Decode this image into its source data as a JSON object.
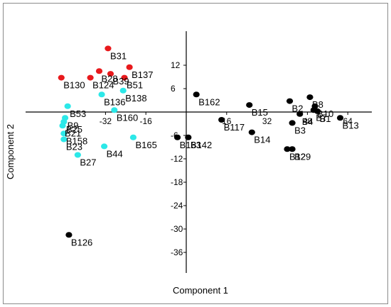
{
  "chart_data": {
    "type": "scatter",
    "xlabel": "Component 1",
    "ylabel": "Component 2",
    "xlim": [
      -45,
      72
    ],
    "ylim": [
      -40,
      20
    ],
    "xticks": [
      -32,
      -16,
      16,
      32,
      48,
      64
    ],
    "xtick_labels": [
      "-32",
      "-16",
      "16",
      "32",
      "48",
      "64"
    ],
    "yticks": [
      12,
      6,
      -6,
      -12,
      -18,
      -24,
      -30,
      -36
    ],
    "ytick_labels": [
      "12",
      "6",
      "-6",
      "-12",
      "-18",
      "-24",
      "-30",
      "-36"
    ],
    "grid": false,
    "legend": false,
    "colors": {
      "red": "#e8191c",
      "cyan": "#2ce8e8",
      "black": "#000000"
    },
    "points": [
      {
        "label": "B31",
        "x": -31,
        "y": 16.3,
        "color": "red"
      },
      {
        "label": "B137",
        "x": -22.5,
        "y": 11.5,
        "color": "red"
      },
      {
        "label": "B28",
        "x": -34.5,
        "y": 10.5,
        "color": "red"
      },
      {
        "label": "B39",
        "x": -30,
        "y": 9.8,
        "color": "red"
      },
      {
        "label": "B130",
        "x": -49.5,
        "y": 8.8,
        "color": "red"
      },
      {
        "label": "B124",
        "x": -38,
        "y": 8.8,
        "color": "red"
      },
      {
        "label": "B51",
        "x": -24.5,
        "y": 8.8,
        "color": "red"
      },
      {
        "label": "B138",
        "x": -25,
        "y": 5.5,
        "color": "cyan"
      },
      {
        "label": "B136",
        "x": -33.5,
        "y": 4.5,
        "color": "cyan"
      },
      {
        "label": "B53",
        "x": -47,
        "y": 1.5,
        "color": "cyan"
      },
      {
        "label": "B160",
        "x": -28.5,
        "y": 0.5,
        "color": "cyan"
      },
      {
        "label": "B9",
        "x": -48,
        "y": -1.5,
        "color": "cyan"
      },
      {
        "label": "B25",
        "x": -48.5,
        "y": -2.5,
        "color": "cyan"
      },
      {
        "label": "B21",
        "x": -49,
        "y": -3.5,
        "color": "cyan"
      },
      {
        "label": "B158",
        "x": -48.5,
        "y": -5.5,
        "color": "cyan"
      },
      {
        "label": "B23",
        "x": -48.5,
        "y": -7.0,
        "color": "cyan"
      },
      {
        "label": "B165",
        "x": -21,
        "y": -6.5,
        "color": "cyan"
      },
      {
        "label": "B44",
        "x": -32.5,
        "y": -8.8,
        "color": "cyan"
      },
      {
        "label": "B27",
        "x": -43,
        "y": -11.0,
        "color": "cyan"
      },
      {
        "label": "B162",
        "x": 4,
        "y": 4.5,
        "color": "black"
      },
      {
        "label": "B15",
        "x": 25,
        "y": 1.8,
        "color": "black"
      },
      {
        "label": "B2",
        "x": 41,
        "y": 2.8,
        "color": "black"
      },
      {
        "label": "B8",
        "x": 49,
        "y": 3.8,
        "color": "black"
      },
      {
        "label": "B10",
        "x": 51,
        "y": 1.5,
        "color": "black"
      },
      {
        "label": "B7",
        "x": 50.5,
        "y": 0.5,
        "color": "black"
      },
      {
        "label": "B1",
        "x": 52,
        "y": 0.2,
        "color": "black"
      },
      {
        "label": "B4",
        "x": 45,
        "y": -0.5,
        "color": "black"
      },
      {
        "label": "B13",
        "x": 61,
        "y": -1.5,
        "color": "black"
      },
      {
        "label": "B117",
        "x": 14,
        "y": -2.0,
        "color": "black"
      },
      {
        "label": "B3",
        "x": 42,
        "y": -2.8,
        "color": "black"
      },
      {
        "label": "B14",
        "x": 26,
        "y": -5.2,
        "color": "black"
      },
      {
        "label": "B163",
        "x": -3.5,
        "y": -6.5,
        "color": "black"
      },
      {
        "label": "B142",
        "x": 0.8,
        "y": -6.5,
        "color": "black"
      },
      {
        "label": "B12",
        "x": 40,
        "y": -9.5,
        "color": "black"
      },
      {
        "label": "B29",
        "x": 42,
        "y": -9.5,
        "color": "black"
      },
      {
        "label": "B126",
        "x": -46.5,
        "y": -31.5,
        "color": "black"
      }
    ]
  }
}
